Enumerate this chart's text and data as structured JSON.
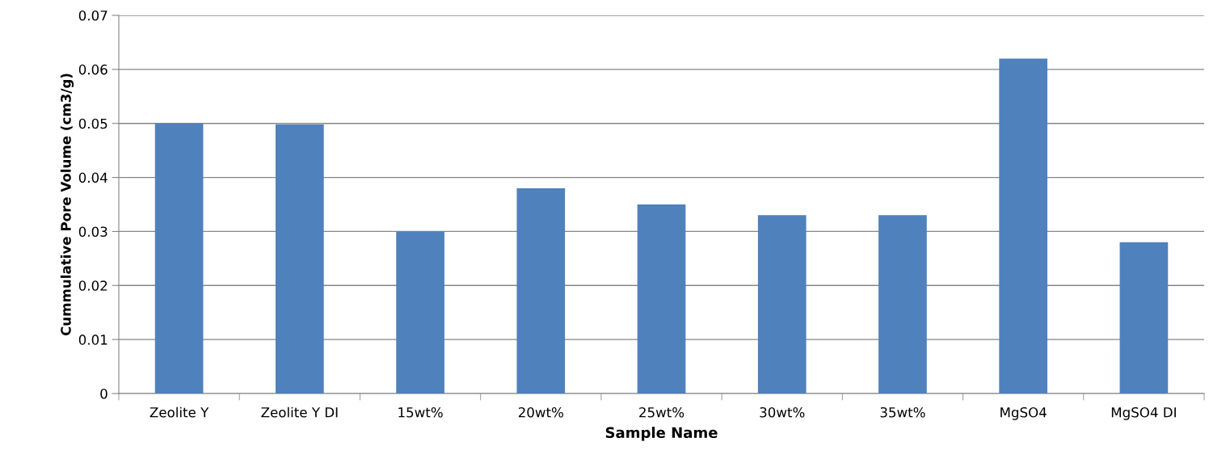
{
  "chart_data": {
    "type": "bar",
    "xlabel": "Sample Name",
    "ylabel": "Cummulative Pore Volume (cm3/g)",
    "categories": [
      "Zeolite Y",
      "Zeolite Y DI",
      "15wt%",
      "20wt%",
      "25wt%",
      "30wt%",
      "35wt%",
      "MgSO4",
      "MgSO4 DI"
    ],
    "values": [
      0.05,
      0.0498,
      0.03,
      0.038,
      0.035,
      0.033,
      0.033,
      0.062,
      0.028
    ],
    "color": "#4f81bd",
    "ylim": [
      0,
      0.07
    ],
    "yticks": [
      {
        "value": 0,
        "label": "0"
      },
      0.01,
      0.02,
      0.03,
      0.04,
      0.05,
      0.06,
      0.07
    ],
    "grid": "y",
    "legend": false
  }
}
